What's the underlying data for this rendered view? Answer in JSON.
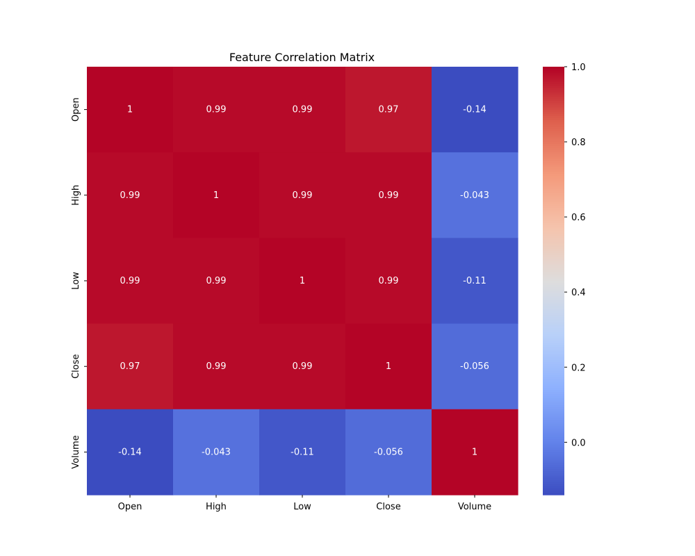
{
  "chart_data": {
    "type": "heatmap",
    "title": "Feature Correlation Matrix",
    "x_labels": [
      "Open",
      "High",
      "Low",
      "Close",
      "Volume"
    ],
    "y_labels": [
      "Open",
      "High",
      "Low",
      "Close",
      "Volume"
    ],
    "values": [
      [
        1,
        0.99,
        0.99,
        0.97,
        -0.14
      ],
      [
        0.99,
        1,
        0.99,
        0.99,
        -0.043
      ],
      [
        0.99,
        0.99,
        1,
        0.99,
        -0.11
      ],
      [
        0.97,
        0.99,
        0.99,
        1,
        -0.056
      ],
      [
        -0.14,
        -0.043,
        -0.11,
        -0.056,
        1
      ]
    ],
    "cell_labels": [
      [
        "1",
        "0.99",
        "0.99",
        "0.97",
        "-0.14"
      ],
      [
        "0.99",
        "1",
        "0.99",
        "0.99",
        "-0.043"
      ],
      [
        "0.99",
        "0.99",
        "1",
        "0.99",
        "-0.11"
      ],
      [
        "0.97",
        "0.99",
        "0.99",
        "1",
        "-0.056"
      ],
      [
        "-0.14",
        "-0.043",
        "-0.11",
        "-0.056",
        "1"
      ]
    ],
    "colorbar": {
      "min": -0.14,
      "max": 1.0,
      "ticks": [
        0.0,
        0.2,
        0.4,
        0.6,
        0.8,
        1.0
      ],
      "tick_labels": [
        "0.0",
        "0.2",
        "0.4",
        "0.6",
        "0.8",
        "1.0"
      ],
      "colormap": "coolwarm"
    }
  }
}
